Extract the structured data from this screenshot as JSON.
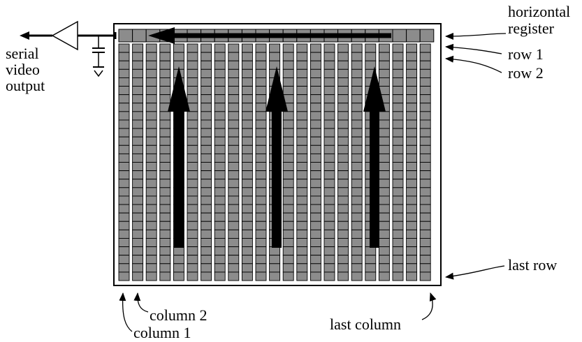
{
  "labels": {
    "output_line1": "serial",
    "output_line2": "video",
    "output_line3": "output",
    "horizontal_line1": "horizontal",
    "horizontal_line2": "register",
    "row1": "row 1",
    "row2": "row 2",
    "last_row": "last row",
    "column1": "column 1",
    "column2": "column 2",
    "last_column": "last column"
  },
  "grid": {
    "columns": 23,
    "rows": 28
  },
  "colors": {
    "pixel_fill": "#8c8c8c",
    "stroke": "#000000",
    "background": "#ffffff"
  }
}
